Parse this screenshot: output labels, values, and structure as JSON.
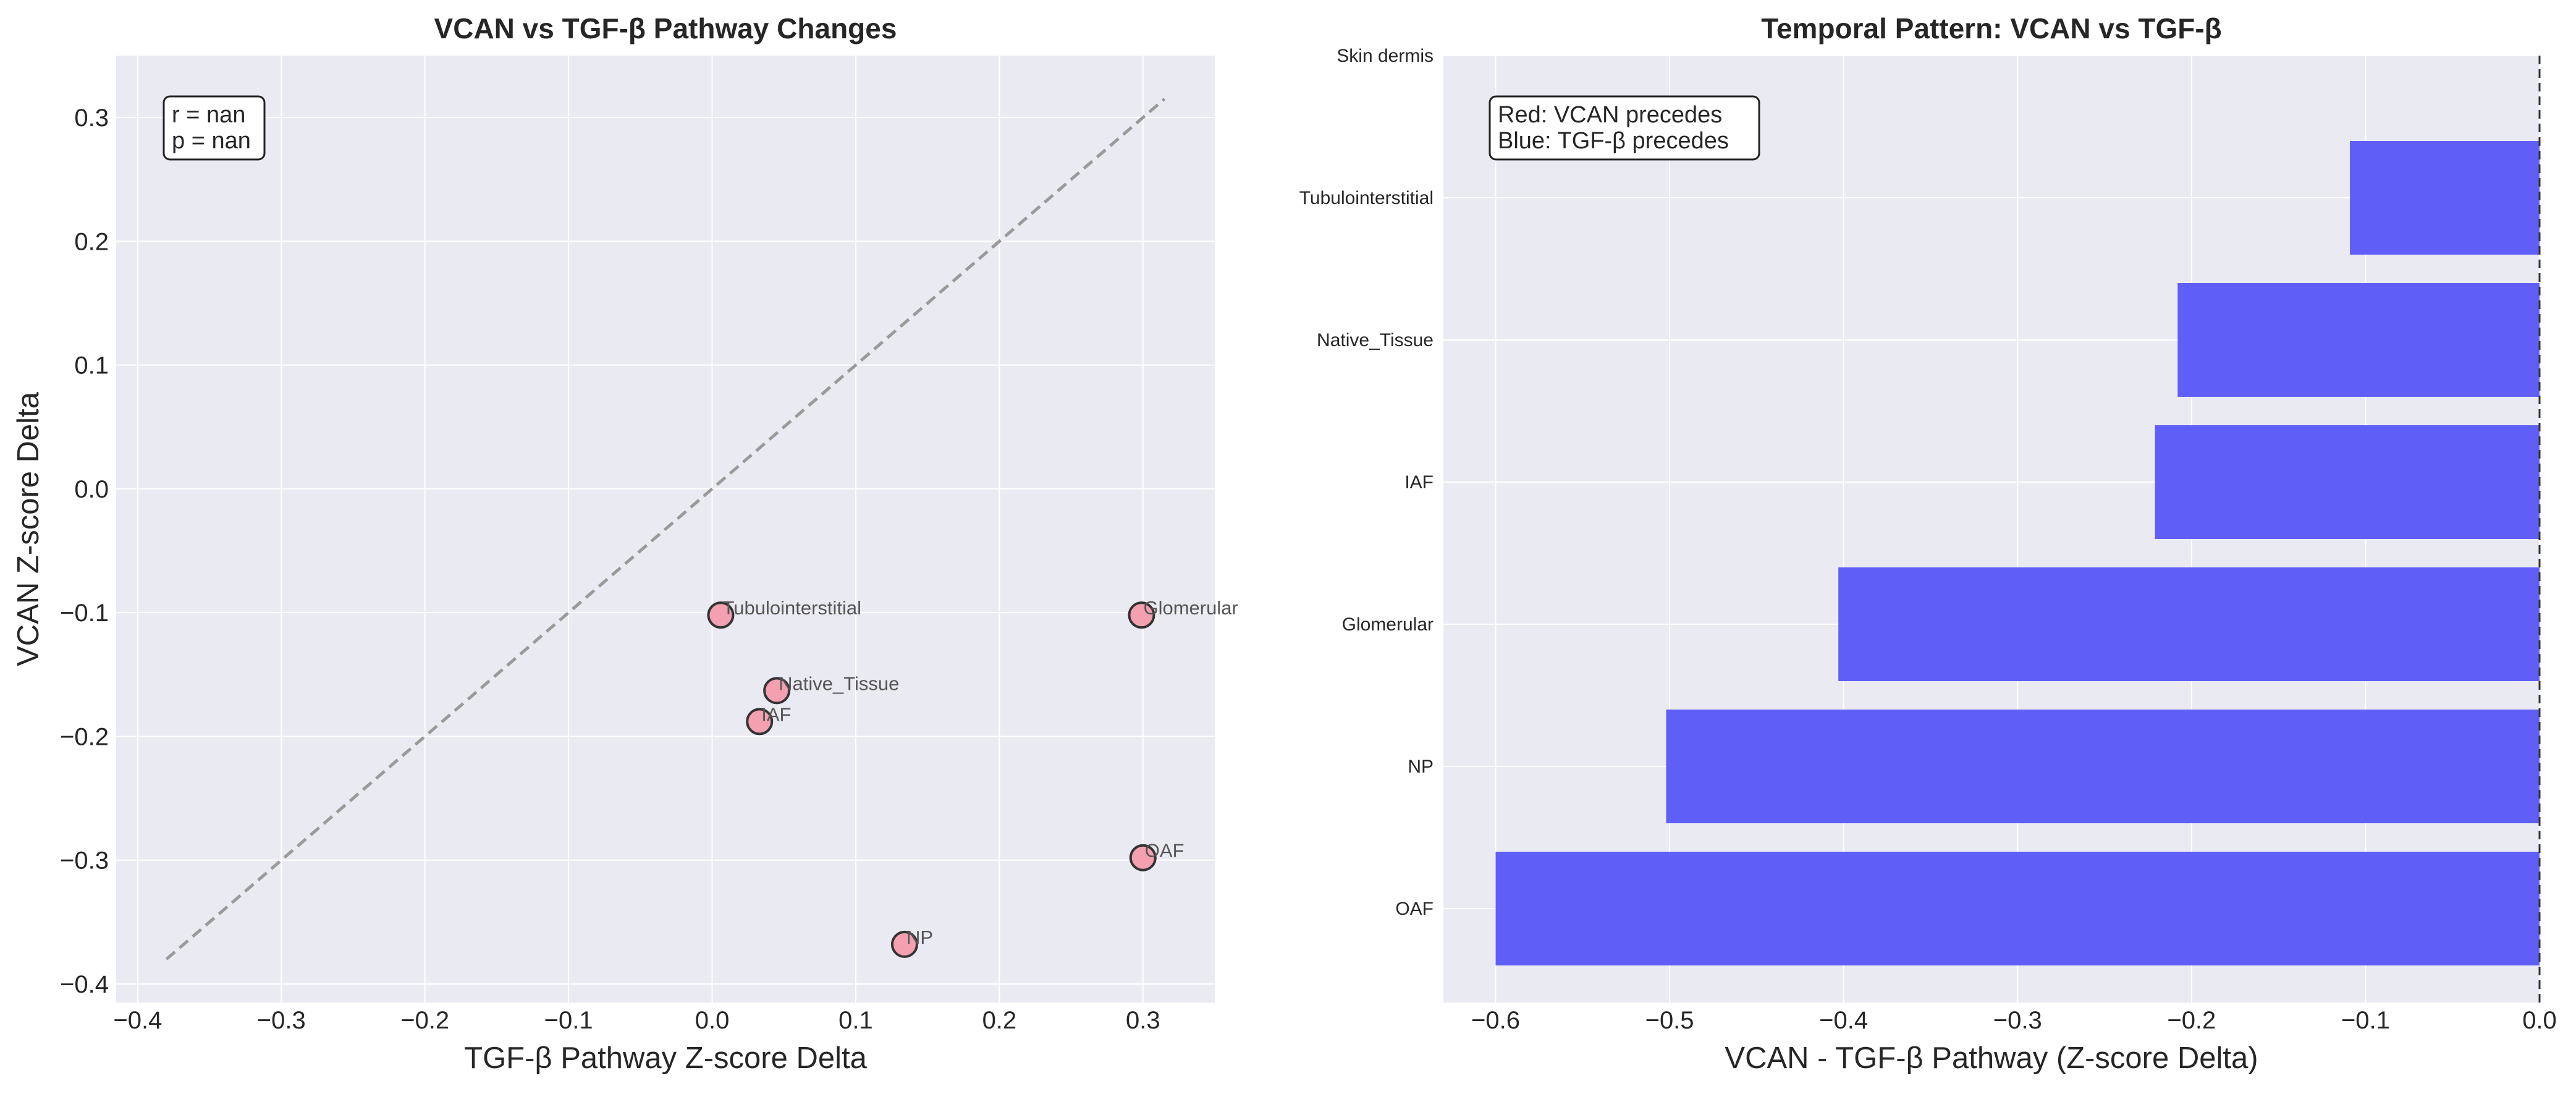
{
  "chart_data": [
    {
      "type": "scatter",
      "title": "VCAN vs TGF-β Pathway Changes",
      "xlabel": "TGF-β Pathway Z-score Delta",
      "ylabel": "VCAN Z-score Delta",
      "xlim": [
        -0.415,
        0.35
      ],
      "ylim": [
        -0.415,
        0.35
      ],
      "xticks": [
        "−0.4",
        "−0.3",
        "−0.2",
        "−0.1",
        "0.0",
        "0.1",
        "0.2",
        "0.3"
      ],
      "yticks": [
        "−0.4",
        "−0.3",
        "−0.2",
        "−0.1",
        "0.0",
        "0.1",
        "0.2",
        "0.3"
      ],
      "points": [
        {
          "label": "Tubulointerstitial",
          "x": 0.006,
          "y": -0.102
        },
        {
          "label": "Glomerular",
          "x": 0.299,
          "y": -0.102
        },
        {
          "label": "Native_Tissue",
          "x": 0.045,
          "y": -0.163
        },
        {
          "label": "IAF",
          "x": 0.033,
          "y": -0.188
        },
        {
          "label": "OAF",
          "x": 0.3,
          "y": -0.298
        },
        {
          "label": "NP",
          "x": 0.134,
          "y": -0.368
        }
      ],
      "reference_line": {
        "style": "dashed",
        "x": [
          -0.38,
          0.315
        ],
        "y": [
          -0.38,
          0.315
        ]
      },
      "stats_box": [
        "r = nan",
        "p = nan"
      ],
      "grid": true,
      "point_color": "#f4a0b0"
    },
    {
      "type": "bar",
      "orientation": "horizontal",
      "title": "Temporal Pattern: VCAN vs TGF-β",
      "xlabel": "VCAN - TGF-β Pathway (Z-score Delta)",
      "ylabel": "",
      "xlim": [
        -0.63,
        0.0
      ],
      "xticks": [
        "−0.6",
        "−0.5",
        "−0.4",
        "−0.3",
        "−0.2",
        "−0.1",
        "0.0"
      ],
      "categories": [
        "OAF",
        "NP",
        "Glomerular",
        "IAF",
        "Native_Tissue",
        "Tubulointerstitial",
        "Skin dermis"
      ],
      "values": [
        -0.6,
        -0.502,
        -0.403,
        -0.221,
        -0.208,
        -0.109,
        null
      ],
      "bar_color": "#5f5ff8",
      "legend_box": [
        "Red: VCAN precedes",
        "Blue: TGF-β precedes"
      ],
      "reference_line": {
        "style": "dashed",
        "x": 0.0
      },
      "grid": true
    }
  ]
}
